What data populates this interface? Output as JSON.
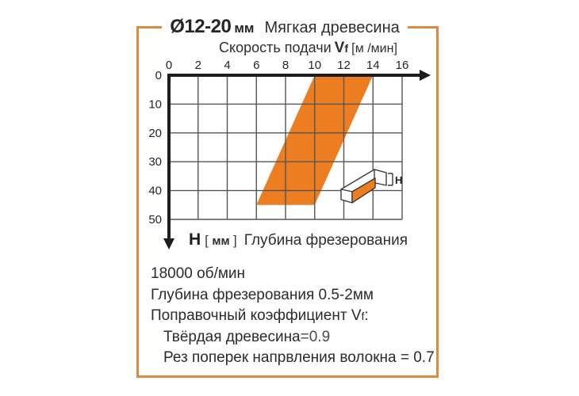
{
  "header": {
    "diameter": "Ø12-20",
    "diameter_unit": "мм",
    "material": "Мягкая древесина"
  },
  "x_axis": {
    "label": "Скорость подачи",
    "symbol": "V",
    "symbol_sub": "f",
    "bracket_open": "[",
    "unit": "м /мин",
    "bracket_close": "]"
  },
  "y_axis": {
    "symbol": "H",
    "bracket_open": "[",
    "unit": "мм",
    "bracket_close": "]",
    "label": "Глубина фрезерования"
  },
  "chart_data": {
    "type": "area",
    "title": "Ø12-20мм Мягкая древесина",
    "xlabel": "Скорость подачи Vf [м /мин]",
    "ylabel": "H [мм] Глубина фрезерования",
    "xlim": [
      0,
      16
    ],
    "ylim": [
      0,
      50
    ],
    "y_axis_inverted": true,
    "grid": true,
    "xticks": [
      0,
      2,
      4,
      6,
      8,
      10,
      12,
      14,
      16
    ],
    "yticks": [
      0,
      10,
      20,
      30,
      40,
      50
    ],
    "band": {
      "description": "Рабочая зона подачи: при H=0 мм Vf от 10 до 14 м/мин, при H=45 мм Vf от 6 до 10 м/мин",
      "vertices_x_h": [
        [
          10,
          0
        ],
        [
          14,
          0
        ],
        [
          10,
          45
        ],
        [
          6,
          45
        ]
      ],
      "color": "#EC7E21"
    }
  },
  "icon": {
    "label": "H"
  },
  "notes": {
    "rpm": "18000 об/мин",
    "depth": "Глубина фрезерования 0.5-2мм",
    "coef_label": "Поправочный коэффициент",
    "coef_symbol": "V",
    "coef_sub": "f",
    "coef_colon": ":",
    "hardwood_label": "Твёрдая древесина",
    "hardwood_value": "=0.9",
    "cross_grain": "Рез поперек напрвления волокна = 0.7"
  },
  "colors": {
    "band": "#EC7E21",
    "frame": "#DC8B3E",
    "axis": "#1d1d1d",
    "grid": "#555555",
    "text": "#2e2e2e"
  }
}
